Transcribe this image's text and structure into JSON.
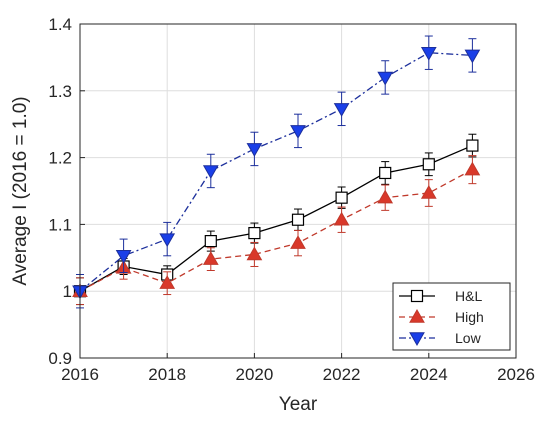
{
  "chart_data": {
    "type": "line",
    "xlabel": "Year",
    "ylabel": "Average I (2016 = 1.0)",
    "xlim": [
      2016,
      2026
    ],
    "ylim": [
      0.9,
      1.4
    ],
    "xticks": [
      "2016",
      "2018",
      "2020",
      "2022",
      "2024",
      "2026"
    ],
    "yticks": [
      "0.9",
      "1",
      "1.1",
      "1.2",
      "1.3",
      "1.4"
    ],
    "grid": true,
    "legend_position": "bottom-right",
    "x": [
      2016,
      2017,
      2018,
      2019,
      2020,
      2021,
      2022,
      2023,
      2024,
      2025
    ],
    "series": [
      {
        "name": "H&L",
        "marker": "square",
        "line": "solid",
        "color": "#000000",
        "fill": "#ffffff",
        "values": [
          1.0,
          1.037,
          1.025,
          1.075,
          1.087,
          1.107,
          1.14,
          1.177,
          1.19,
          1.218
        ],
        "errors": [
          0.02,
          0.012,
          0.013,
          0.015,
          0.015,
          0.016,
          0.016,
          0.017,
          0.017,
          0.017
        ]
      },
      {
        "name": "High",
        "marker": "triangle-up",
        "line": "dashed",
        "color": "#c0392b",
        "fill": "#d9382a",
        "values": [
          1.0,
          1.035,
          1.012,
          1.048,
          1.055,
          1.072,
          1.107,
          1.14,
          1.147,
          1.182
        ],
        "errors": [
          0.02,
          0.017,
          0.017,
          0.017,
          0.018,
          0.019,
          0.019,
          0.019,
          0.02,
          0.021
        ]
      },
      {
        "name": "Low",
        "marker": "triangle-down",
        "line": "dash-dot",
        "color": "#1c2f9c",
        "fill": "#1a3fe8",
        "values": [
          1.0,
          1.053,
          1.078,
          1.18,
          1.213,
          1.24,
          1.273,
          1.32,
          1.357,
          1.353
        ],
        "errors": [
          0.025,
          0.025,
          0.025,
          0.025,
          0.025,
          0.025,
          0.025,
          0.025,
          0.025,
          0.025
        ]
      }
    ]
  }
}
